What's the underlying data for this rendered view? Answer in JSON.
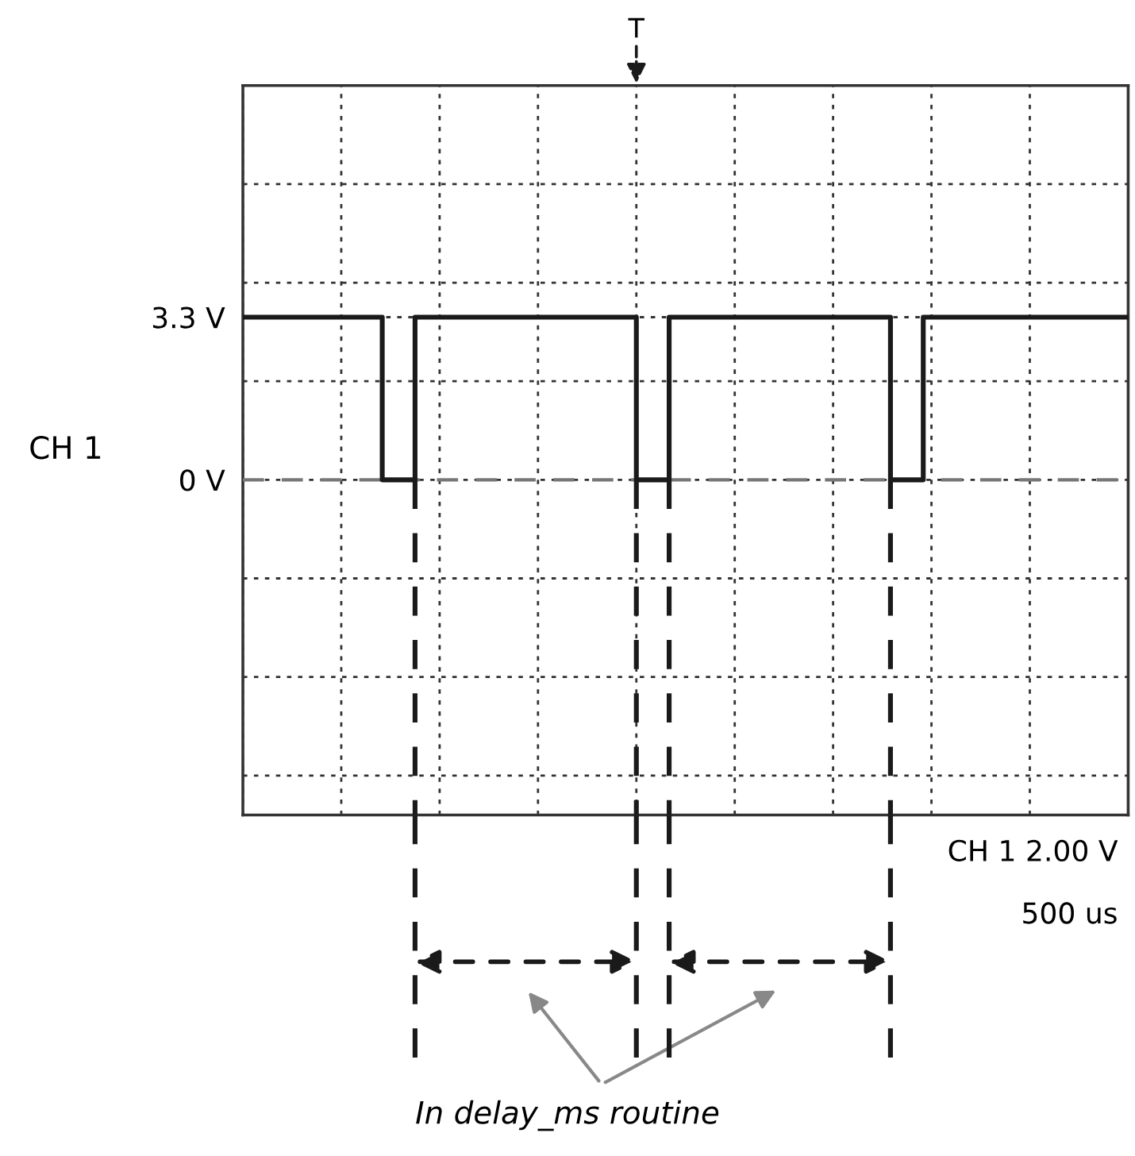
{
  "chart_data": {
    "type": "step",
    "ylabel": "CH 1",
    "categories": [
      null,
      null,
      null,
      null,
      null,
      null,
      null,
      null,
      null,
      null,
      null,
      null,
      null,
      null,
      null,
      null,
      null,
      null,
      null,
      null,
      null,
      null,
      null,
      null,
      null,
      null,
      null,
      null,
      null,
      null,
      null,
      null,
      null,
      null,
      null,
      null,
      null,
      null,
      null,
      null,
      null,
      null,
      null,
      null,
      null,
      null,
      null,
      null,
      null,
      null,
      null,
      null,
      null,
      null,
      null,
      null,
      null,
      null,
      null,
      null,
      null,
      null,
      null,
      null,
      null,
      null,
      null,
      null,
      null,
      null,
      null,
      null,
      null,
      null,
      null,
      null,
      null,
      null,
      null,
      null,
      null,
      null,
      null,
      null,
      null,
      null,
      null,
      null,
      null,
      null,
      null,
      null,
      null,
      null,
      null,
      null,
      null,
      null,
      null,
      null,
      null,
      null,
      null,
      null,
      null,
      null,
      null,
      null,
      null
    ],
    "values": [
      3.3,
      3.3,
      3.3,
      3.3,
      3.3,
      3.3,
      3.3,
      3.3,
      3.3,
      3.3,
      3.3,
      3.3,
      3.3,
      3.3,
      3.3,
      3.3,
      3.3,
      0,
      0,
      0,
      0,
      3.3,
      3.3,
      3.3,
      3.3,
      3.3,
      3.3,
      3.3,
      3.3,
      3.3,
      3.3,
      3.3,
      3.3,
      3.3,
      3.3,
      3.3,
      3.3,
      3.3,
      3.3,
      3.3,
      3.3,
      3.3,
      3.3,
      3.3,
      3.3,
      3.3,
      3.3,
      3.3,
      0,
      0,
      0,
      0,
      3.3,
      3.3,
      3.3,
      3.3,
      3.3,
      3.3,
      3.3,
      3.3,
      3.3,
      3.3,
      3.3,
      3.3,
      3.3,
      3.3,
      3.3,
      3.3,
      3.3,
      3.3,
      3.3,
      3.3,
      3.3,
      3.3,
      3.3,
      3.3,
      3.3,
      3.3,
      3.3,
      0,
      0,
      0,
      0,
      3.3,
      3.3,
      3.3,
      3.3,
      3.3,
      3.3,
      3.3,
      3.3,
      3.3,
      3.3,
      3.3,
      3.3,
      3.3,
      3.3,
      3.3,
      3.3,
      3.3,
      3.3,
      3.3,
      3.3,
      3.3,
      3.3,
      3.3,
      3.3,
      3.3,
      3.3
    ],
    "color": "#1a1a1a",
    "ylim": [
      -6.8,
      8
    ],
    "yticks": [
      {
        "value": -6,
        "label": null
      },
      {
        "value": -4,
        "label": null
      },
      {
        "value": -2,
        "label": null
      },
      {
        "value": 0,
        "label": "0 V"
      },
      {
        "value": 2,
        "label": null
      },
      {
        "value": 3.3,
        "label": "3.3 V"
      },
      {
        "value": 4,
        "label": null
      },
      {
        "value": 6,
        "label": null
      }
    ],
    "tick_labels": "y",
    "grid": true,
    "ref_lines": [
      {
        "axis": "y",
        "value": 0,
        "color": "#777777",
        "line_style": "dashed"
      }
    ],
    "annotations": [
      "T",
      "CH 1 2.00 V",
      "500 us",
      "In delay_ms routine"
    ]
  }
}
